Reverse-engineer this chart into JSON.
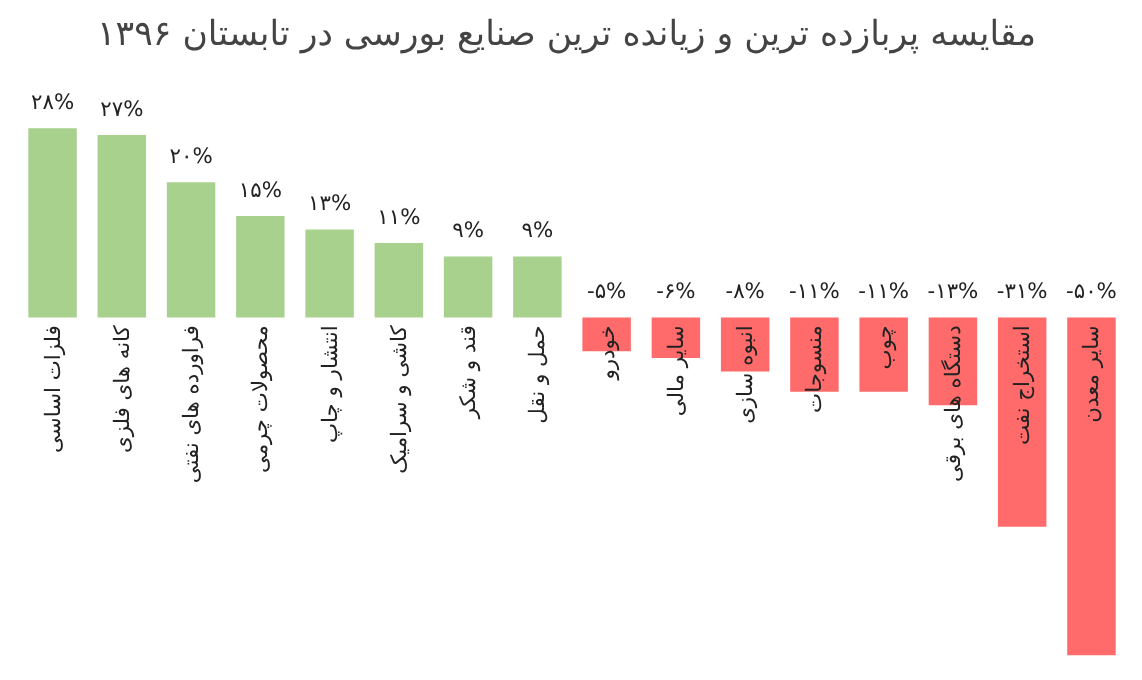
{
  "chart_data": {
    "type": "bar",
    "title": "مقایسه پربازده ترین و زیانده ترین صنایع بورسی در  تابستان ۱۳۹۶",
    "categories": [
      "فلزات اساسی",
      "کانه های فلزی",
      "فراورده های نفتی",
      "محصولات چرمی",
      "انتشار و چاپ",
      "کاشی و سرامیک",
      "قند و شکر",
      "حمل و نقل",
      "خودرو",
      "سایر مالی",
      "انبوه سازی",
      "منسوجات",
      "چوب",
      "دستگاه های برقی",
      "استخراج نفت",
      "سایر معدن"
    ],
    "values": [
      28,
      27,
      20,
      15,
      13,
      11,
      9,
      9,
      -5,
      -6,
      -8,
      -11,
      -11,
      -13,
      -31,
      -50
    ],
    "colors": [
      "#a9d18e",
      "#a9d18e",
      "#a9d18e",
      "#a9d18e",
      "#a9d18e",
      "#a9d18e",
      "#a9d18e",
      "#a9d18e",
      "#ff6b6b",
      "#ff6b6b",
      "#ff6b6b",
      "#ff6b6b",
      "#ff6b6b",
      "#ff6b6b",
      "#ff6b6b",
      "#ff6b6b"
    ],
    "value_labels": [
      "۲۸%",
      "۲۷%",
      "۲۰%",
      "۱۵%",
      "۱۳%",
      "۱۱%",
      "۹%",
      "۹%",
      "-۵%",
      "-۶%",
      "-۸%",
      "-۱۱%",
      "-۱۱%",
      "-۱۳%",
      "-۳۱%",
      "-۵۰%"
    ],
    "grid": false
  }
}
